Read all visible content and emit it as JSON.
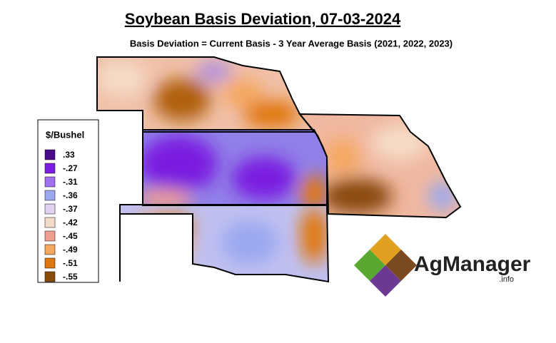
{
  "header": {
    "title": "Soybean Basis Deviation, 07-03-2024",
    "subtitle": "Basis Deviation = Current Basis - 3 Year Average Basis (2021, 2022, 2023)"
  },
  "legend": {
    "title": "$/Bushel",
    "items": [
      {
        "label": ".33",
        "color": "#4b0a8a"
      },
      {
        "label": "-.27",
        "color": "#7a1fe0"
      },
      {
        "label": "-.31",
        "color": "#a070f0"
      },
      {
        "label": "-.36",
        "color": "#9aa8f0"
      },
      {
        "label": "-.37",
        "color": "#e2d2f2"
      },
      {
        "label": "-.42",
        "color": "#f5dcc8"
      },
      {
        "label": "-.45",
        "color": "#f0a090"
      },
      {
        "label": "-.49",
        "color": "#f5a860"
      },
      {
        "label": "-.51",
        "color": "#e07810"
      },
      {
        "label": "-.55",
        "color": "#8a4a08"
      }
    ]
  },
  "logo": {
    "name": "AgManager",
    "suffix": ".info"
  }
}
